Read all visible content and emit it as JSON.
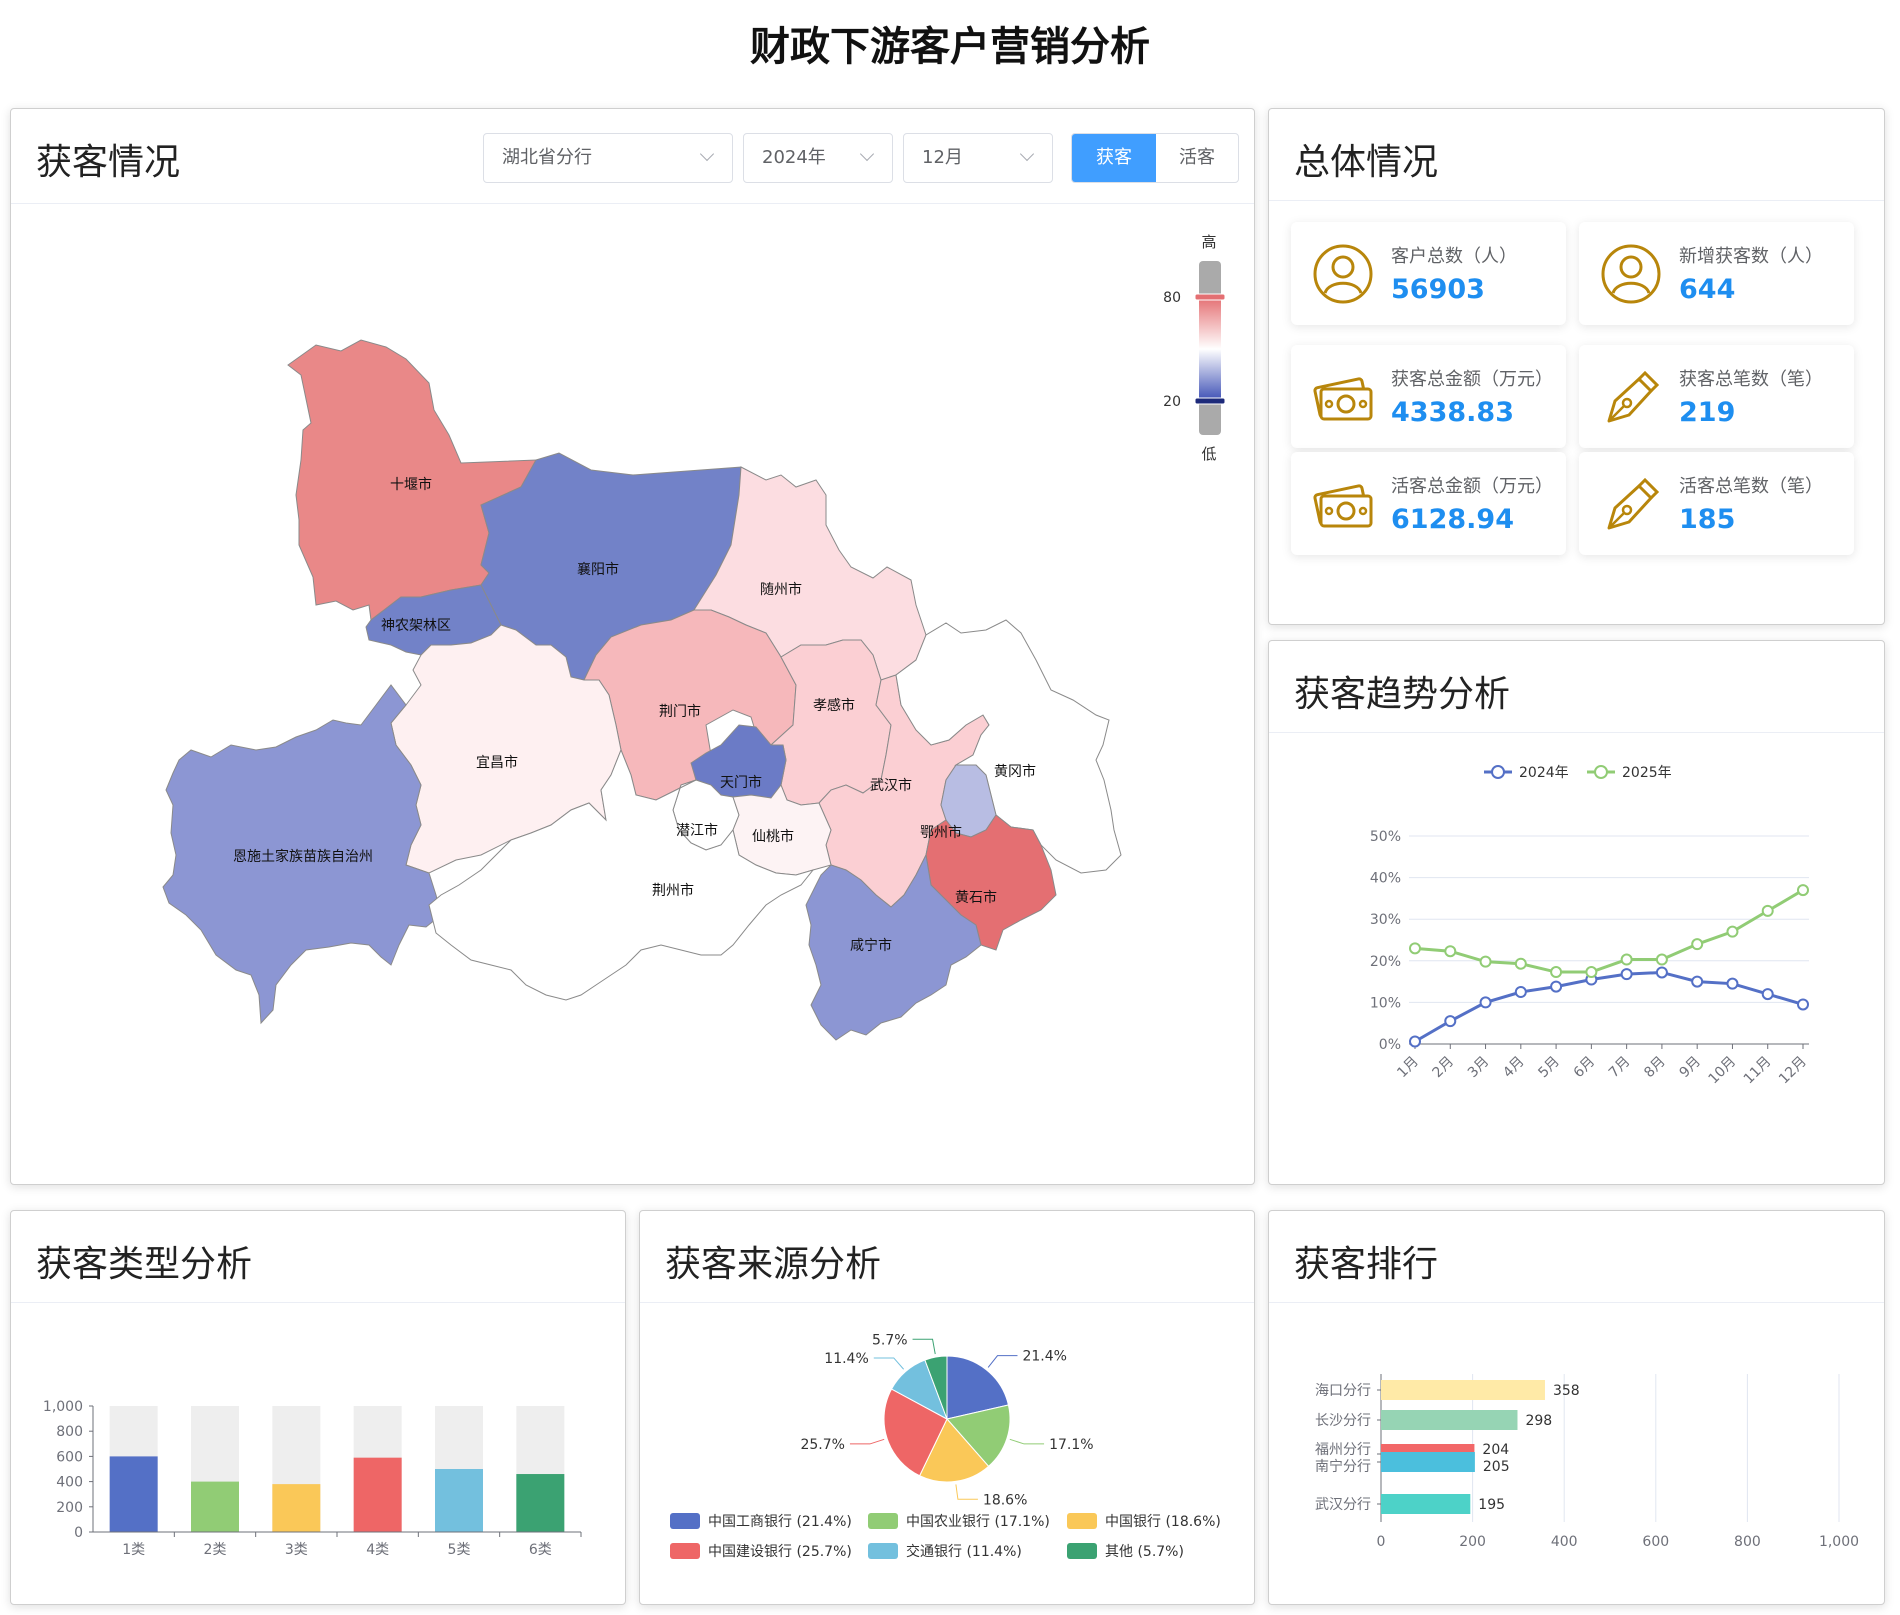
{
  "page_title": "财政下游客户营销分析",
  "map_card": {
    "title": "获客情况",
    "filters": {
      "branch": "湖北省分行",
      "year": "2024年",
      "month": "12月"
    },
    "toggle": {
      "active": "获客",
      "inactive": "活客"
    },
    "visual_map": {
      "high_label": "高",
      "low_label": "低",
      "max_value": "80",
      "min_value": "20"
    },
    "regions": [
      {
        "name": "十堰市",
        "fill": "#e98888"
      },
      {
        "name": "襄阳市",
        "fill": "#7282c8"
      },
      {
        "name": "随州市",
        "fill": "#fcdde1"
      },
      {
        "name": "神农架林区",
        "fill": "#7282c8"
      },
      {
        "name": "荆门市",
        "fill": "#f6b8bb"
      },
      {
        "name": "孝感市",
        "fill": "#fbcfd3"
      },
      {
        "name": "宜昌市",
        "fill": "#fef0f1"
      },
      {
        "name": "天门市",
        "fill": "#6b7bc6"
      },
      {
        "name": "武汉市",
        "fill": "#fbcfd3"
      },
      {
        "name": "黄冈市",
        "fill": "#ffffff"
      },
      {
        "name": "恩施土家族苗族自治州",
        "fill": "#8c96d3"
      },
      {
        "name": "潜江市",
        "fill": "#ffffff"
      },
      {
        "name": "仙桃市",
        "fill": "#fdf3f4"
      },
      {
        "name": "鄂州市",
        "fill": "#b8bde3"
      },
      {
        "name": "荆州市",
        "fill": "#ffffff"
      },
      {
        "name": "黄石市",
        "fill": "#e46f72"
      },
      {
        "name": "咸宁市",
        "fill": "#8c96d3"
      }
    ]
  },
  "overview": {
    "title": "总体情况",
    "stats": [
      {
        "label": "客户总数（人）",
        "value": "56903",
        "icon": "user-circle-icon"
      },
      {
        "label": "新增获客数（人）",
        "value": "644",
        "icon": "user-circle-icon"
      },
      {
        "label": "获客总金额（万元）",
        "value": "4338.83",
        "icon": "money-icon"
      },
      {
        "label": "获客总笔数（笔）",
        "value": "219",
        "icon": "pen-icon"
      },
      {
        "label": "活客总金额（万元）",
        "value": "6128.94",
        "icon": "money-icon"
      },
      {
        "label": "活客总笔数（笔）",
        "value": "185",
        "icon": "pen-icon"
      }
    ]
  },
  "trend": {
    "title": "获客趋势分析",
    "chart_data": {
      "type": "line",
      "categories": [
        "1月",
        "2月",
        "3月",
        "4月",
        "5月",
        "6月",
        "7月",
        "8月",
        "9月",
        "10月",
        "11月",
        "12月"
      ],
      "series": [
        {
          "name": "2024年",
          "color": "#5470c6",
          "values": [
            0.6,
            5.5,
            10,
            12.5,
            13.8,
            15.5,
            16.8,
            17.2,
            15,
            14.5,
            12,
            9.5
          ]
        },
        {
          "name": "2025年",
          "color": "#91cc75",
          "values": [
            23,
            22.3,
            19.8,
            19.3,
            17.3,
            17.3,
            20.3,
            20.3,
            24,
            27,
            32,
            37
          ]
        }
      ],
      "y_ticks": [
        "0%",
        "10%",
        "20%",
        "30%",
        "40%",
        "50%"
      ],
      "ylim": [
        0,
        50
      ],
      "legend_position": "top-center",
      "grid": true
    }
  },
  "type_analysis": {
    "title": "获客类型分析",
    "chart_data": {
      "type": "bar",
      "categories": [
        "1类",
        "2类",
        "3类",
        "4类",
        "5类",
        "6类"
      ],
      "values": [
        600,
        400,
        380,
        590,
        500,
        460
      ],
      "colors": [
        "#5470c6",
        "#91cc75",
        "#fac858",
        "#ee6666",
        "#73c0de",
        "#3ba272"
      ],
      "y_ticks": [
        "0",
        "200",
        "400",
        "600",
        "800",
        "1,000"
      ],
      "ylim": [
        0,
        1000
      ],
      "background_bars": true
    }
  },
  "source_analysis": {
    "title": "获客来源分析",
    "chart_data": {
      "type": "pie",
      "slices": [
        {
          "name": "中国工商银行",
          "value": 21.4,
          "label": "21.4%",
          "legend": "中国工商银行 (21.4%)",
          "color": "#5470c6"
        },
        {
          "name": "中国农业银行",
          "value": 17.1,
          "label": "17.1%",
          "legend": "中国农业银行 (17.1%)",
          "color": "#91cc75"
        },
        {
          "name": "中国银行",
          "value": 18.6,
          "label": "18.6%",
          "legend": "中国银行 (18.6%)",
          "color": "#fac858"
        },
        {
          "name": "中国建设银行",
          "value": 25.7,
          "label": "25.7%",
          "legend": "中国建设银行 (25.7%)",
          "color": "#ee6666"
        },
        {
          "name": "交通银行",
          "value": 11.4,
          "label": "11.4%",
          "legend": "交通银行 (11.4%)",
          "color": "#73c0de"
        },
        {
          "name": "其他",
          "value": 5.7,
          "label": "5.7%",
          "legend": "其他 (5.7%)",
          "color": "#3ba272"
        }
      ],
      "legend_position": "bottom"
    }
  },
  "ranking": {
    "title": "获客排行",
    "chart_data": {
      "type": "bar",
      "orientation": "horizontal",
      "items": [
        {
          "name": "海口分行",
          "value": 358,
          "color": "#ffeaa7"
        },
        {
          "name": "长沙分行",
          "value": 298,
          "color": "#96d4b4"
        },
        {
          "name": "福州分行",
          "value": 204,
          "color": "#f26768"
        },
        {
          "name": "南宁分行",
          "value": 205,
          "color": "#4bbfdd"
        },
        {
          "name": "武汉分行",
          "value": 195,
          "color": "#4dd2c8"
        }
      ],
      "x_ticks": [
        "0",
        "200",
        "400",
        "600",
        "800",
        "1,000"
      ],
      "xlim": [
        0,
        1000
      ],
      "grid": true
    }
  }
}
